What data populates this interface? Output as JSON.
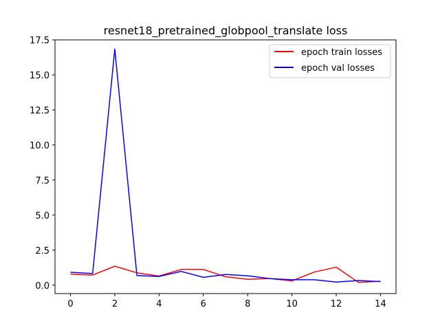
{
  "chart_data": {
    "type": "line",
    "title": "resnet18_pretrained_globpool_translate loss",
    "xlabel": "",
    "ylabel": "",
    "xlim": [
      -0.7,
      14.7
    ],
    "ylim": [
      -0.6,
      17.5
    ],
    "xticks": [
      0,
      2,
      4,
      6,
      8,
      10,
      12,
      14
    ],
    "xtick_labels": [
      "0",
      "2",
      "4",
      "6",
      "8",
      "10",
      "12",
      "14"
    ],
    "yticks": [
      0.0,
      2.5,
      5.0,
      7.5,
      10.0,
      12.5,
      15.0,
      17.5
    ],
    "ytick_labels": [
      "0.0",
      "2.5",
      "5.0",
      "7.5",
      "10.0",
      "12.5",
      "15.0",
      "17.5"
    ],
    "grid": false,
    "legend_position": "top-right",
    "x": [
      0,
      1,
      2,
      3,
      4,
      5,
      6,
      7,
      8,
      9,
      10,
      11,
      12,
      13,
      14
    ],
    "series": [
      {
        "name": "epoch train losses",
        "color": "#ff0000",
        "values": [
          0.78,
          0.72,
          1.35,
          0.88,
          0.65,
          1.12,
          1.12,
          0.6,
          0.42,
          0.47,
          0.3,
          0.93,
          1.28,
          0.2,
          0.28
        ]
      },
      {
        "name": "epoch val losses",
        "color": "#0000ff",
        "values": [
          0.92,
          0.83,
          16.85,
          0.68,
          0.62,
          0.98,
          0.56,
          0.76,
          0.67,
          0.47,
          0.39,
          0.39,
          0.22,
          0.33,
          0.25
        ]
      }
    ]
  }
}
